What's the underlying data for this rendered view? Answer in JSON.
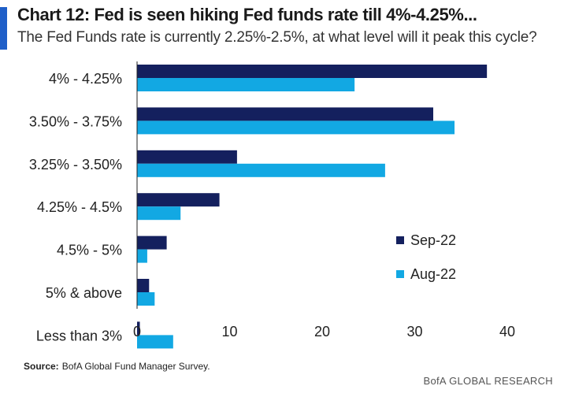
{
  "header": {
    "title": "Chart 12: Fed is seen hiking Fed funds rate till 4%-4.25%...",
    "subtitle": "The Fed Funds rate is currently 2.25%-2.5%, at what level will it peak this cycle?"
  },
  "footer": {
    "source_label": "Source:",
    "source_text": "BofA Global Fund Manager Survey.",
    "brand": "BofA GLOBAL RESEARCH"
  },
  "colors": {
    "accent": "#1f5fc8",
    "sep22": "#14205e",
    "aug22": "#12a8e3"
  },
  "chart_data": {
    "type": "bar",
    "orientation": "horizontal",
    "categories": [
      "4% - 4.25%",
      "3.50% - 3.75%",
      "3.25% - 3.50%",
      "4.25% - 4.5%",
      "4.5% - 5%",
      "5% & above",
      "Less than 3%"
    ],
    "series": [
      {
        "name": "Sep-22",
        "values": [
          37.8,
          32.0,
          10.8,
          8.9,
          3.2,
          1.3,
          0.3
        ]
      },
      {
        "name": "Aug-22",
        "values": [
          23.5,
          34.3,
          26.8,
          4.7,
          1.1,
          1.9,
          3.9
        ]
      }
    ],
    "xlim": [
      0,
      40
    ],
    "xticks": [
      0,
      10,
      20,
      30,
      40
    ],
    "legend_position": "right",
    "grid": false
  }
}
